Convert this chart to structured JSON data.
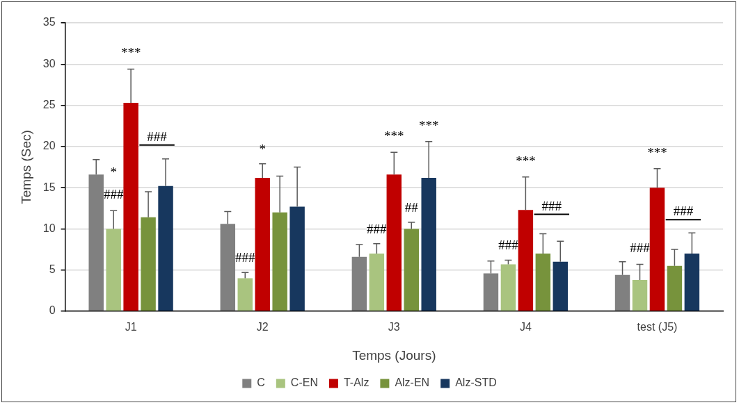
{
  "chart_data": {
    "type": "bar",
    "xlabel": "Temps (Jours)",
    "ylabel": "Temps (Sec)",
    "categories": [
      "J1",
      "J2",
      "J3",
      "J4",
      "test (J5)"
    ],
    "series": [
      {
        "name": "C",
        "color": "#808080",
        "values": [
          16.6,
          10.6,
          6.6,
          4.6,
          4.4
        ],
        "errors": [
          [
            16.6,
            18.4
          ],
          [
            10.6,
            12.1
          ],
          [
            6.6,
            8.1
          ],
          [
            4.6,
            6.1
          ],
          [
            4.4,
            6.0
          ]
        ]
      },
      {
        "name": "C-EN",
        "color": "#a9c47f",
        "values": [
          10.0,
          4.0,
          7.0,
          5.7,
          3.8
        ],
        "errors": [
          [
            10.0,
            12.2
          ],
          [
            4.0,
            4.7
          ],
          [
            7.0,
            8.2
          ],
          [
            5.7,
            6.2
          ],
          [
            3.8,
            5.7
          ]
        ]
      },
      {
        "name": "T-Alz",
        "color": "#c00000",
        "values": [
          25.3,
          16.2,
          16.6,
          12.3,
          15.0
        ],
        "errors": [
          [
            25.3,
            29.4
          ],
          [
            16.2,
            17.9
          ],
          [
            16.6,
            19.3
          ],
          [
            12.3,
            16.3
          ],
          [
            15.0,
            17.3
          ]
        ]
      },
      {
        "name": "Alz-EN",
        "color": "#77933c",
        "values": [
          11.4,
          12.0,
          10.0,
          7.0,
          5.5
        ],
        "errors": [
          [
            11.4,
            14.5
          ],
          [
            12.0,
            16.4
          ],
          [
            10.0,
            10.8
          ],
          [
            7.0,
            9.4
          ],
          [
            5.5,
            7.5
          ]
        ]
      },
      {
        "name": "Alz-STD",
        "color": "#17375e",
        "values": [
          15.2,
          12.7,
          16.2,
          6.0,
          7.0
        ],
        "errors": [
          [
            15.2,
            18.5
          ],
          [
            12.7,
            17.5
          ],
          [
            16.2,
            20.6
          ],
          [
            6.0,
            8.5
          ],
          [
            7.0,
            9.5
          ]
        ]
      }
    ],
    "ylim": [
      0,
      35
    ],
    "yticks": [
      0,
      5,
      10,
      15,
      20,
      25,
      30,
      35
    ],
    "grid": "y",
    "legend": "bottom",
    "annotations": [
      "***",
      "*",
      "###",
      "###",
      "*",
      "###",
      "***",
      "***",
      "##",
      "###",
      "***",
      "###",
      "###",
      "***",
      "###",
      "###"
    ]
  }
}
